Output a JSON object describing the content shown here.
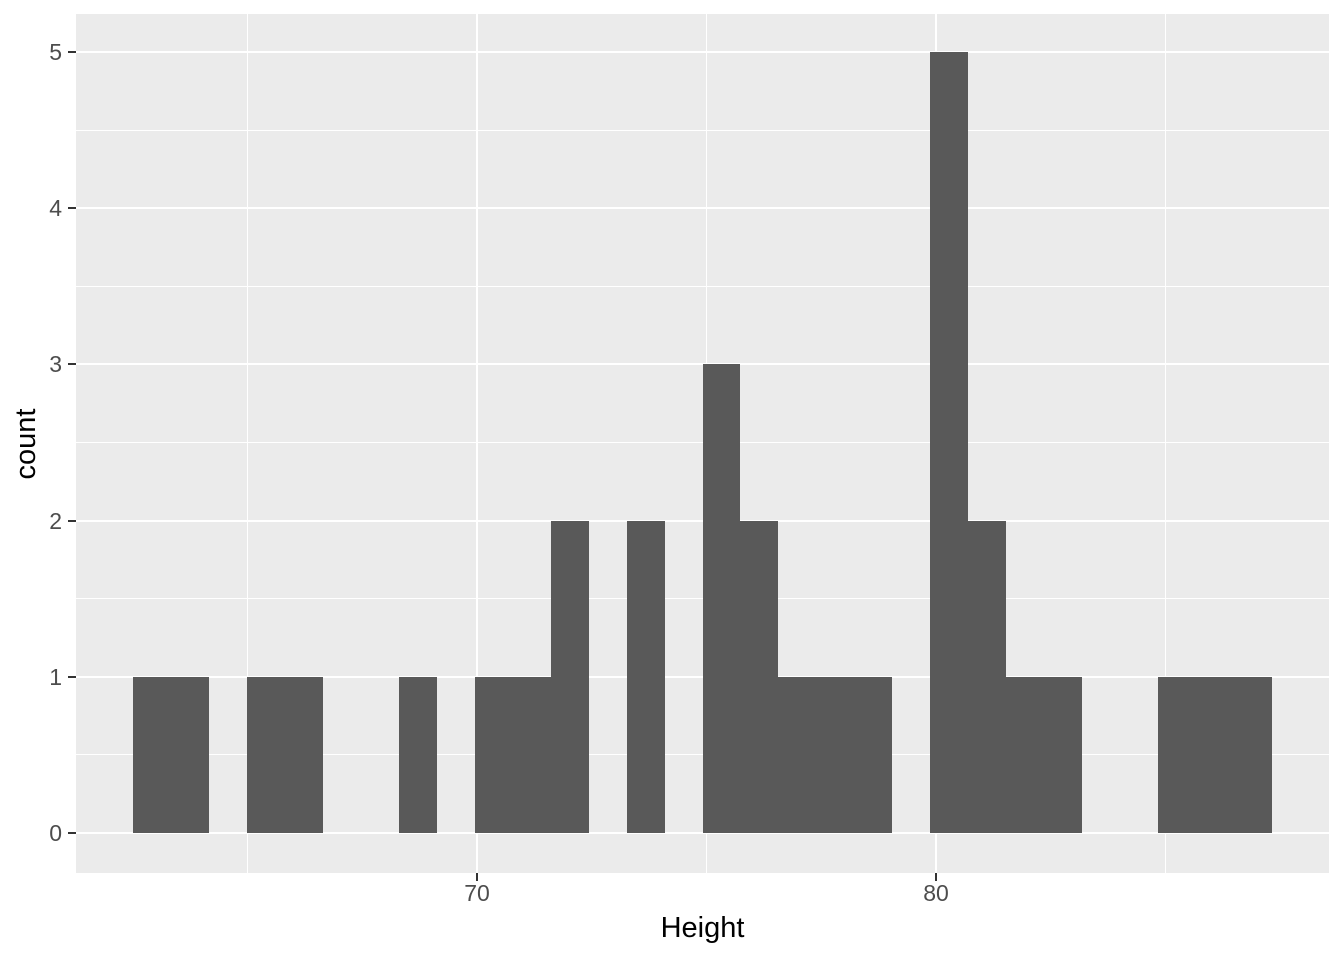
{
  "figure": {
    "background": "#FFFFFF",
    "panel_background": "#EBEBEB",
    "grid_color": "#FFFFFF",
    "bar_color": "#595959",
    "tick_mark_color": "#333333",
    "tick_label_color": "#4D4D4D",
    "axis_title_color": "#000000"
  },
  "chart_data": {
    "type": "bar",
    "subtype": "histogram",
    "title": "",
    "xlabel": "Height",
    "ylabel": "count",
    "legend": "none",
    "grid": "on",
    "bin_start": 62.51,
    "bin_width": 0.8276,
    "counts": [
      1,
      1,
      0,
      1,
      1,
      0,
      0,
      1,
      0,
      1,
      1,
      2,
      0,
      2,
      0,
      3,
      2,
      1,
      1,
      1,
      0,
      5,
      2,
      1,
      1,
      0,
      0,
      1,
      1,
      1
    ],
    "n_observations": 31,
    "x_ticks": [
      {
        "value": 70,
        "label": "70"
      },
      {
        "value": 80,
        "label": "80"
      }
    ],
    "y_ticks": [
      {
        "value": 0,
        "label": "0"
      },
      {
        "value": 1,
        "label": "1"
      },
      {
        "value": 2,
        "label": "2"
      },
      {
        "value": 3,
        "label": "3"
      },
      {
        "value": 4,
        "label": "4"
      },
      {
        "value": 5,
        "label": "5"
      }
    ],
    "x_minor_ticks": [
      65,
      75,
      85
    ],
    "y_minor_ticks": [
      0.5,
      1.5,
      2.5,
      3.5,
      4.5
    ],
    "xlim": [
      61.26,
      88.56
    ],
    "ylim": [
      -0.26,
      5.24
    ]
  }
}
